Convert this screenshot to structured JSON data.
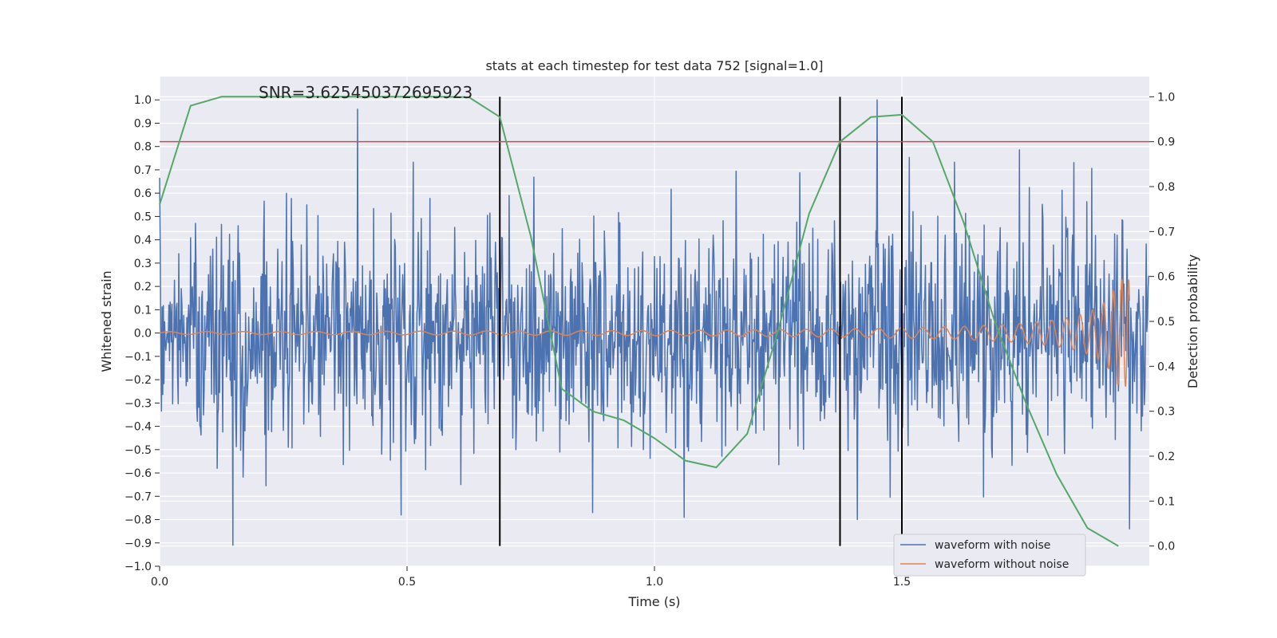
{
  "chart_data": {
    "type": "line",
    "title": "stats at each timestep for test data 752 [signal=1.0]",
    "annotation": "SNR=3.625450372695923",
    "xlabel": "Time (s)",
    "ylabel": "Whitened strain",
    "y2label": "Detection probability",
    "xlim": [
      0.0,
      2.0
    ],
    "ylim": [
      -1.0,
      1.1
    ],
    "y2lim": [
      -0.045,
      1.045
    ],
    "xticks": [
      "0.0",
      "0.5",
      "1.0",
      "1.5"
    ],
    "xtick_values": [
      0.0,
      0.5,
      1.0,
      1.5
    ],
    "yticks": [
      "−1.0",
      "−0.9",
      "−0.8",
      "−0.7",
      "−0.6",
      "−0.5",
      "−0.4",
      "−0.3",
      "−0.2",
      "−0.1",
      "0.0",
      "0.1",
      "0.2",
      "0.3",
      "0.4",
      "0.5",
      "0.6",
      "0.7",
      "0.8",
      "0.9",
      "1.0"
    ],
    "ytick_values": [
      -1.0,
      -0.9,
      -0.8,
      -0.7,
      -0.6,
      -0.5,
      -0.4,
      -0.3,
      -0.2,
      -0.1,
      0.0,
      0.1,
      0.2,
      0.3,
      0.4,
      0.5,
      0.6,
      0.7,
      0.8,
      0.9,
      1.0
    ],
    "y2ticks": [
      "0.0",
      "0.1",
      "0.2",
      "0.3",
      "0.4",
      "0.5",
      "0.6",
      "0.7",
      "0.8",
      "0.9",
      "1.0"
    ],
    "y2tick_values": [
      0.0,
      0.1,
      0.2,
      0.3,
      0.4,
      0.5,
      0.6,
      0.7,
      0.8,
      0.9,
      1.0
    ],
    "threshold_y2": 0.9,
    "vlines_x": [
      0.6875,
      1.375,
      1.5
    ],
    "legend_position": "bottom-right",
    "series": [
      {
        "name": "waveform with noise",
        "color": "#4c72b0",
        "noise_amplitude": 0.24,
        "sample_count": 1600,
        "peak_samples": [
          {
            "x": 0.148,
            "y": -0.91
          },
          {
            "x": 0.4,
            "y": 0.96
          },
          {
            "x": 0.488,
            "y": -0.78
          },
          {
            "x": 0.875,
            "y": -0.77
          },
          {
            "x": 1.06,
            "y": -0.79
          },
          {
            "x": 1.45,
            "y": 1.0
          },
          {
            "x": 1.41,
            "y": -0.8
          },
          {
            "x": 1.96,
            "y": -0.84
          }
        ]
      },
      {
        "name": "waveform without noise",
        "color": "#dd8452",
        "chirp_start_amplitude": 0.006,
        "chirp_end_amplitude": 0.23,
        "chirp_end_time": 1.96
      },
      {
        "name": "detection probability",
        "color": "#55a868",
        "axis": "right",
        "x": [
          0.0,
          0.0625,
          0.125,
          0.1875,
          0.25,
          0.3125,
          0.375,
          0.4375,
          0.5,
          0.5625,
          0.625,
          0.6875,
          0.75,
          0.8125,
          0.875,
          0.9375,
          1.0,
          1.0625,
          1.125,
          1.1875,
          1.25,
          1.3125,
          1.375,
          1.4375,
          1.5,
          1.5625,
          1.625,
          1.6875,
          1.75,
          1.8125,
          1.875,
          1.9375
        ],
        "values": [
          0.76,
          0.98,
          1.0,
          1.0,
          1.0,
          1.0,
          1.0,
          1.0,
          1.0,
          1.0,
          0.999,
          0.955,
          0.69,
          0.35,
          0.3,
          0.28,
          0.24,
          0.19,
          0.175,
          0.25,
          0.48,
          0.74,
          0.9,
          0.955,
          0.96,
          0.9,
          0.72,
          0.5,
          0.32,
          0.16,
          0.04,
          0.0
        ]
      },
      {
        "name": "threshold",
        "color": "#c44e52",
        "axis": "right",
        "value": 0.9
      }
    ]
  }
}
